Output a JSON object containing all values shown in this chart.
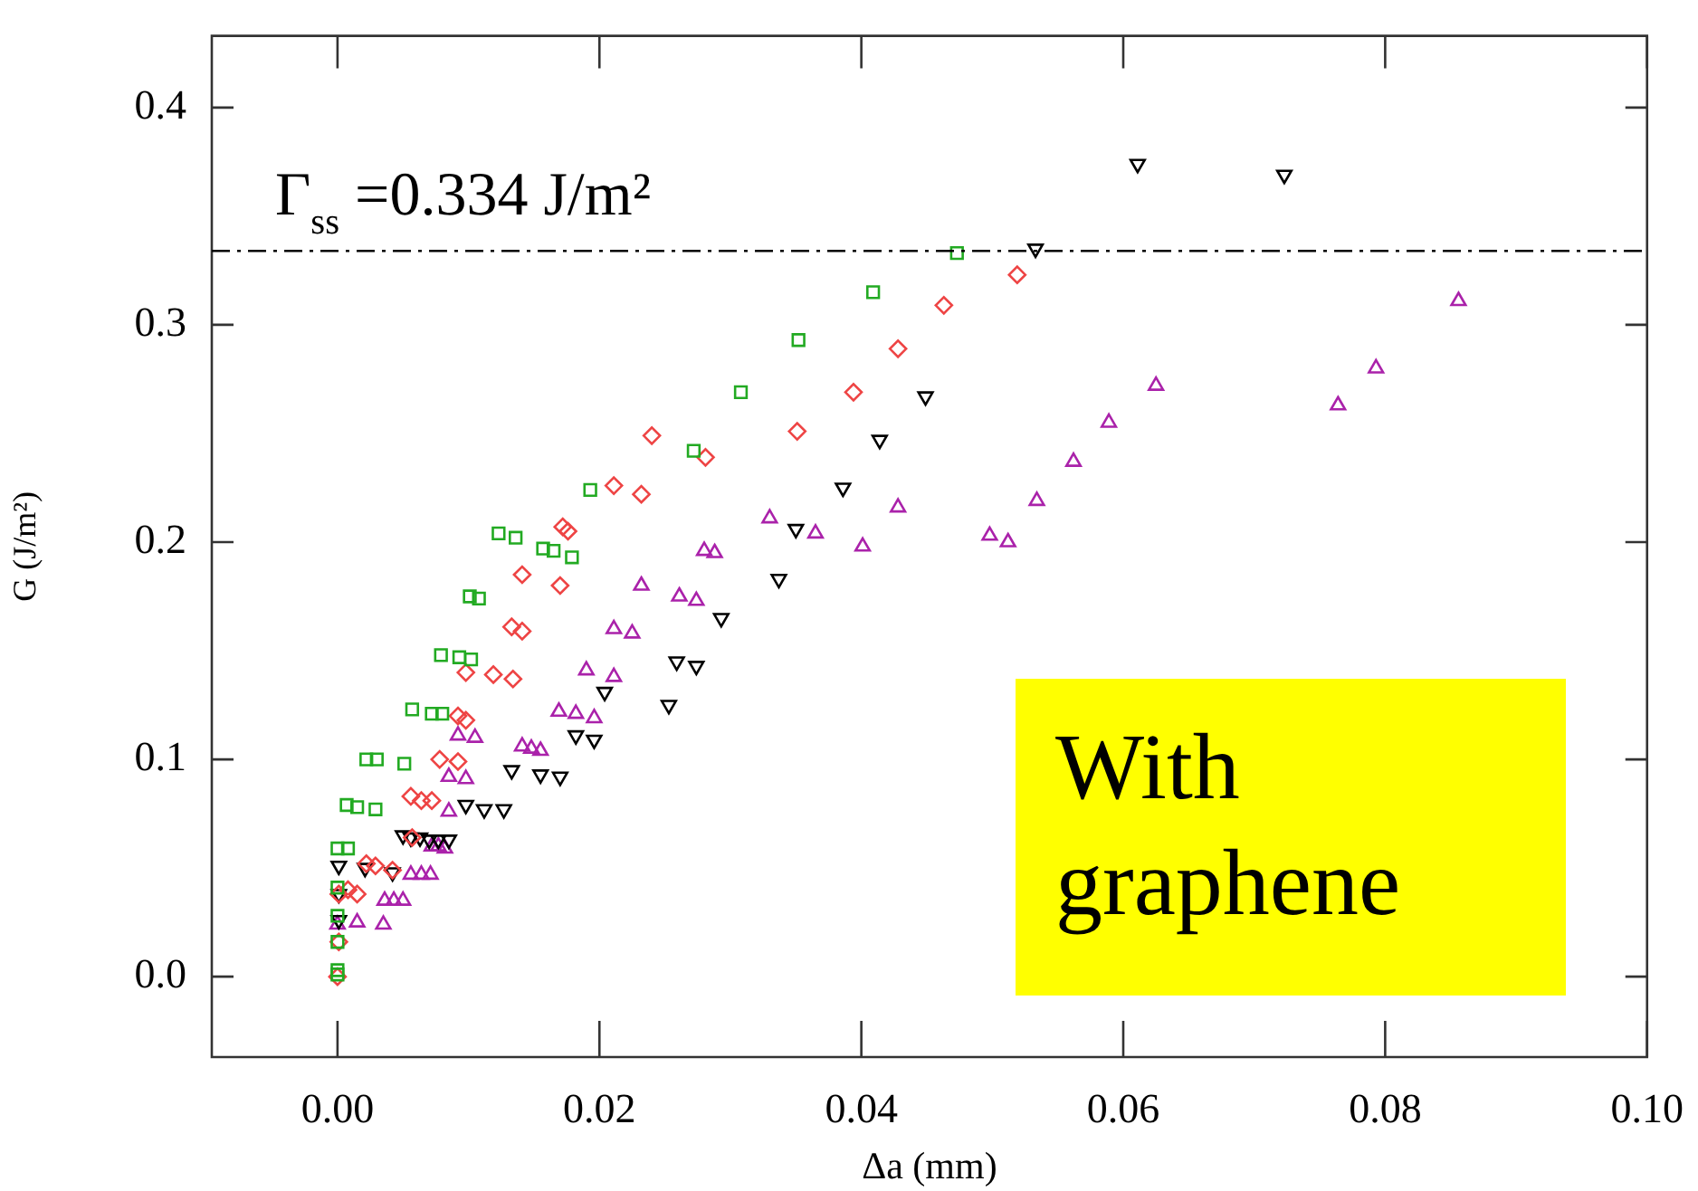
{
  "chart_data": {
    "type": "scatter",
    "xlabel": "Δa (mm)",
    "ylabel": "G (J/m²)",
    "xlim": [
      -0.0096,
      0.1
    ],
    "ylim": [
      -0.037,
      0.433
    ],
    "xticks": [
      {
        "value": 0,
        "label": "0.00"
      },
      {
        "value": 0.02,
        "label": "0.02"
      },
      {
        "value": 0.04,
        "label": "0.04"
      },
      {
        "value": 0.06,
        "label": "0.06"
      },
      {
        "value": 0.08,
        "label": "0.08"
      },
      {
        "value": 0.1,
        "label": "0.10"
      }
    ],
    "yticks": [
      {
        "value": 0,
        "label": "0.0"
      },
      {
        "value": 0.1,
        "label": "0.1"
      },
      {
        "value": 0.2,
        "label": "0.2"
      },
      {
        "value": 0.3,
        "label": "0.3"
      },
      {
        "value": 0.4,
        "label": "0.4"
      }
    ],
    "grid": false,
    "legend": false,
    "ref_lines": [
      {
        "axis": "y",
        "value": 0.334,
        "label": "Γ$_{ss}$ =0.334 J/m²",
        "color": "#000000",
        "line_style": "dashdot"
      }
    ],
    "annotations": [
      "With graphene"
    ],
    "series": [
      {
        "color": "#22aa22",
        "marker": "square",
        "x": [
          0,
          0,
          0,
          0,
          0,
          0,
          0.0008,
          0.0007,
          0.0015,
          0.0029,
          0.0022,
          0.003,
          0.0051,
          0.0057,
          0.0072,
          0.008,
          0.0079,
          0.0093,
          0.0102,
          0.0101,
          0.0108,
          0.0123,
          0.0136,
          0.0157,
          0.0165,
          0.0179,
          0.0193,
          0.0272,
          0.0308,
          0.0352,
          0.0409,
          0.0473
        ],
        "values": [
          0.001,
          0.003,
          0.016,
          0.028,
          0.041,
          0.059,
          0.059,
          0.079,
          0.078,
          0.077,
          0.1,
          0.1,
          0.098,
          0.123,
          0.121,
          0.121,
          0.148,
          0.147,
          0.146,
          0.175,
          0.174,
          0.204,
          0.202,
          0.197,
          0.196,
          0.193,
          0.224,
          0.242,
          0.269,
          0.293,
          0.315,
          0.333
        ]
      },
      {
        "color": "#ee4444",
        "marker": "diamond",
        "x": [
          0,
          0.0001,
          0.0001,
          0.0008,
          0.0015,
          0.0022,
          0.0029,
          0.0042,
          0.0057,
          0.0056,
          0.0064,
          0.0072,
          0.0078,
          0.0092,
          0.0092,
          0.0098,
          0.0098,
          0.0119,
          0.0134,
          0.0133,
          0.0141,
          0.0141,
          0.017,
          0.0172,
          0.0176,
          0.0211,
          0.0232,
          0.024,
          0.0281,
          0.0351,
          0.0394,
          0.0428,
          0.0463,
          0.0519
        ],
        "values": [
          0,
          0.016,
          0.038,
          0.04,
          0.038,
          0.052,
          0.051,
          0.049,
          0.064,
          0.083,
          0.081,
          0.081,
          0.1,
          0.099,
          0.12,
          0.118,
          0.14,
          0.139,
          0.137,
          0.161,
          0.159,
          0.185,
          0.18,
          0.207,
          0.205,
          0.226,
          0.222,
          0.249,
          0.239,
          0.251,
          0.269,
          0.289,
          0.309,
          0.323
        ]
      },
      {
        "color": "#000000",
        "marker": "triangle",
        "x": [
          0.0001,
          0.0001,
          0.0001,
          0.0021,
          0.0042,
          0.005,
          0.0056,
          0.0063,
          0.007,
          0.0077,
          0.0085,
          0.0098,
          0.0112,
          0.0127,
          0.0133,
          0.0155,
          0.017,
          0.0182,
          0.0196,
          0.0204,
          0.0253,
          0.0259,
          0.0274,
          0.0293,
          0.0337,
          0.035,
          0.0386,
          0.0414,
          0.0449,
          0.0533,
          0.0611,
          0.0723
        ],
        "values": [
          0.026,
          0.038,
          0.051,
          0.05,
          0.048,
          0.065,
          0.064,
          0.064,
          0.063,
          0.063,
          0.063,
          0.079,
          0.077,
          0.077,
          0.095,
          0.093,
          0.092,
          0.111,
          0.109,
          0.131,
          0.125,
          0.145,
          0.143,
          0.165,
          0.183,
          0.206,
          0.225,
          0.247,
          0.267,
          0.335,
          0.374,
          0.369
        ]
      },
      {
        "color": "#aa22aa",
        "marker": "triangle",
        "x": [
          0,
          0.0015,
          0.0035,
          0.0036,
          0.0043,
          0.005,
          0.0056,
          0.0064,
          0.0071,
          0.0072,
          0.0077,
          0.0082,
          0.0085,
          0.0085,
          0.0098,
          0.0092,
          0.0105,
          0.0141,
          0.0148,
          0.0155,
          0.0169,
          0.0182,
          0.0196,
          0.019,
          0.0211,
          0.0211,
          0.0225,
          0.0232,
          0.0261,
          0.0274,
          0.028,
          0.0288,
          0.033,
          0.0365,
          0.0401,
          0.0428,
          0.0498,
          0.0512,
          0.0534,
          0.0562,
          0.0589,
          0.0625,
          0.0764,
          0.0793,
          0.0856
        ],
        "values": [
          0.024,
          0.025,
          0.024,
          0.035,
          0.035,
          0.035,
          0.047,
          0.047,
          0.047,
          0.06,
          0.06,
          0.059,
          0.076,
          0.092,
          0.091,
          0.111,
          0.11,
          0.106,
          0.105,
          0.104,
          0.122,
          0.121,
          0.119,
          0.141,
          0.138,
          0.16,
          0.158,
          0.18,
          0.175,
          0.173,
          0.196,
          0.195,
          0.211,
          0.204,
          0.198,
          0.216,
          0.203,
          0.2,
          0.219,
          0.237,
          0.255,
          0.272,
          0.263,
          0.28,
          0.311
        ]
      }
    ]
  }
}
